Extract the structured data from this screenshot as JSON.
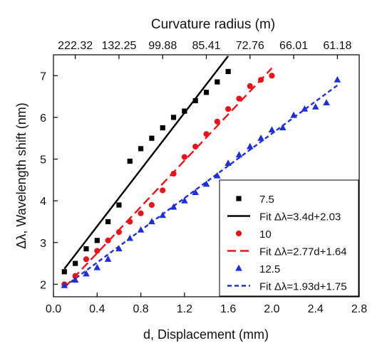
{
  "chart_data": {
    "type": "scatter",
    "title": "",
    "xlabel": "d, Displacement (mm)",
    "ylabel": "Δλ, Wavelength shift (nm)",
    "top_axis_label": "Curvature radius (m)",
    "xlim": [
      0.0,
      2.8
    ],
    "ylim": [
      1.7,
      7.5
    ],
    "x_ticks": [
      "0.0",
      "0.4",
      "0.8",
      "1.2",
      "1.6",
      "2.0",
      "2.4",
      "2.8"
    ],
    "y_ticks": [
      "2",
      "3",
      "4",
      "5",
      "6",
      "7"
    ],
    "top_ticks": [
      {
        "x": 0.2,
        "label": "222.32"
      },
      {
        "x": 0.6,
        "label": "132.25"
      },
      {
        "x": 1.0,
        "label": "99.88"
      },
      {
        "x": 1.4,
        "label": "85.41"
      },
      {
        "x": 1.8,
        "label": "72.76"
      },
      {
        "x": 2.2,
        "label": "66.01"
      },
      {
        "x": 2.6,
        "label": "61.18"
      }
    ],
    "legend_position": "bottom-right",
    "series": [
      {
        "name": "7.5",
        "marker": "square",
        "color": "#000000",
        "x": [
          0.1,
          0.2,
          0.3,
          0.4,
          0.5,
          0.6,
          0.7,
          0.8,
          0.9,
          1.0,
          1.1,
          1.2,
          1.3,
          1.4,
          1.5,
          1.6
        ],
        "y": [
          2.3,
          2.5,
          2.85,
          3.05,
          3.5,
          3.9,
          4.95,
          5.25,
          5.5,
          5.75,
          6.0,
          6.15,
          6.4,
          6.6,
          6.85,
          7.1
        ]
      },
      {
        "name": "10",
        "marker": "circle",
        "color": "#e8141b",
        "x": [
          0.1,
          0.2,
          0.3,
          0.4,
          0.5,
          0.6,
          0.7,
          0.8,
          0.9,
          1.0,
          1.1,
          1.2,
          1.3,
          1.4,
          1.5,
          1.6,
          1.7,
          1.8,
          1.9,
          2.0
        ],
        "y": [
          2.0,
          2.2,
          2.6,
          2.8,
          3.05,
          3.25,
          3.5,
          3.7,
          3.9,
          4.25,
          4.65,
          5.05,
          5.3,
          5.6,
          5.9,
          6.2,
          6.45,
          6.75,
          6.9,
          7.0
        ]
      },
      {
        "name": "12.5",
        "marker": "triangle",
        "color": "#1f2fd6",
        "x": [
          0.1,
          0.2,
          0.3,
          0.4,
          0.5,
          0.6,
          0.7,
          0.8,
          0.9,
          1.0,
          1.1,
          1.2,
          1.3,
          1.4,
          1.5,
          1.6,
          1.7,
          1.8,
          1.9,
          2.0,
          2.1,
          2.2,
          2.3,
          2.4,
          2.5,
          2.6
        ],
        "y": [
          1.97,
          2.1,
          2.25,
          2.4,
          2.6,
          2.85,
          3.1,
          3.3,
          3.5,
          3.65,
          3.85,
          4.0,
          4.2,
          4.4,
          4.6,
          4.9,
          5.1,
          5.3,
          5.5,
          5.7,
          5.75,
          6.05,
          6.2,
          6.25,
          6.35,
          6.9
        ]
      }
    ],
    "fits": [
      {
        "name": "Fit Δλ=3.4d+2.03",
        "slope": 3.4,
        "intercept": 2.03,
        "x_range": [
          0.1,
          1.6
        ],
        "color": "#000000",
        "style": "solid"
      },
      {
        "name": "Fit Δλ=2.77d+1.64",
        "slope": 2.77,
        "intercept": 1.64,
        "x_range": [
          0.1,
          2.0
        ],
        "color": "#e8141b",
        "style": "long-dash"
      },
      {
        "name": "Fit Δλ=1.93d+1.75",
        "slope": 1.93,
        "intercept": 1.75,
        "x_range": [
          0.1,
          2.6
        ],
        "color": "#1f2fd6",
        "style": "short-dash"
      }
    ]
  }
}
